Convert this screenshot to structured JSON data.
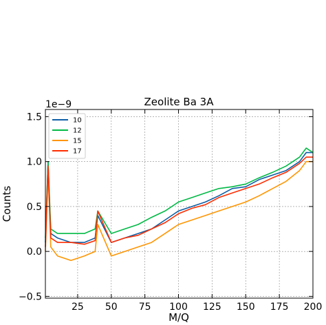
{
  "chart_data": {
    "type": "line",
    "title": "Zeolite Ba 3A",
    "xlabel": "M/Q",
    "ylabel": "Counts",
    "y_offset_label": "1e−9",
    "xlim": [
      1,
      200
    ],
    "ylim": [
      -0.52,
      1.58
    ],
    "x_ticks": [
      25,
      50,
      75,
      100,
      125,
      150,
      175,
      200
    ],
    "y_ticks": [
      -0.5,
      0.0,
      0.5,
      1.0,
      1.5
    ],
    "x_tick_labels": [
      "25",
      "50",
      "75",
      "100",
      "125",
      "150",
      "175",
      "200"
    ],
    "y_tick_labels": [
      "−0.5",
      "0.0",
      "0.5",
      "1.0",
      "1.5"
    ],
    "grid": true,
    "legend_position": "top-left",
    "series": [
      {
        "name": "10",
        "color": "#0c5da5",
        "x": [
          1,
          3,
          5,
          10,
          20,
          30,
          38,
          40,
          50,
          60,
          70,
          80,
          90,
          100,
          110,
          120,
          130,
          140,
          150,
          160,
          170,
          180,
          190,
          195,
          200
        ],
        "values": [
          0.1,
          1.0,
          0.2,
          0.15,
          0.1,
          0.1,
          0.15,
          0.4,
          0.1,
          0.15,
          0.2,
          0.25,
          0.35,
          0.45,
          0.5,
          0.55,
          0.62,
          0.7,
          0.72,
          0.8,
          0.85,
          0.9,
          1.0,
          1.1,
          1.1
        ]
      },
      {
        "name": "12",
        "color": "#00b945",
        "x": [
          1,
          3,
          5,
          10,
          20,
          30,
          38,
          40,
          50,
          60,
          70,
          80,
          90,
          100,
          110,
          120,
          130,
          140,
          150,
          160,
          170,
          180,
          190,
          195,
          200
        ],
        "values": [
          0.15,
          1.0,
          0.25,
          0.2,
          0.2,
          0.2,
          0.25,
          0.45,
          0.2,
          0.25,
          0.3,
          0.38,
          0.45,
          0.55,
          0.6,
          0.65,
          0.7,
          0.72,
          0.75,
          0.82,
          0.88,
          0.95,
          1.05,
          1.15,
          1.1
        ]
      },
      {
        "name": "15",
        "color": "#ff9500",
        "x": [
          1,
          3,
          5,
          10,
          20,
          30,
          38,
          40,
          50,
          60,
          70,
          80,
          90,
          100,
          110,
          120,
          130,
          140,
          150,
          160,
          170,
          180,
          190,
          195,
          200
        ],
        "values": [
          0.0,
          0.9,
          0.05,
          -0.05,
          -0.1,
          -0.05,
          0.0,
          0.3,
          -0.05,
          0.0,
          0.05,
          0.1,
          0.2,
          0.3,
          0.35,
          0.4,
          0.45,
          0.5,
          0.55,
          0.62,
          0.7,
          0.78,
          0.9,
          1.0,
          1.0
        ]
      },
      {
        "name": "17",
        "color": "#ff2c00",
        "x": [
          1,
          3,
          5,
          10,
          20,
          30,
          38,
          40,
          50,
          60,
          70,
          80,
          90,
          100,
          110,
          120,
          130,
          140,
          150,
          160,
          170,
          180,
          190,
          195,
          200
        ],
        "values": [
          0.05,
          0.95,
          0.15,
          0.1,
          0.1,
          0.08,
          0.12,
          0.45,
          0.1,
          0.15,
          0.18,
          0.25,
          0.32,
          0.42,
          0.48,
          0.52,
          0.6,
          0.65,
          0.7,
          0.75,
          0.82,
          0.88,
          0.98,
          1.05,
          1.05
        ]
      }
    ]
  }
}
